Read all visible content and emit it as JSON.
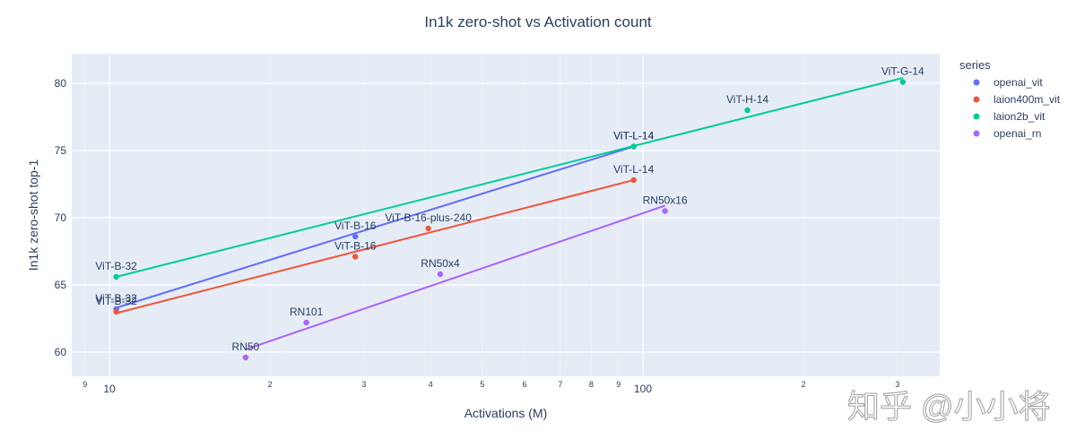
{
  "chart_data": {
    "type": "scatter",
    "title": "In1k zero-shot vs Activation count",
    "xlabel": "Activations (M)",
    "ylabel": "In1k zero-shot top-1",
    "x_scale": "log",
    "xlim": [
      8.5,
      360
    ],
    "ylim": [
      58.2,
      82.2
    ],
    "y_ticks": [
      60,
      65,
      70,
      75,
      80
    ],
    "x_ticks_major": [
      {
        "value": 10,
        "label": "10"
      },
      {
        "value": 100,
        "label": "100"
      }
    ],
    "x_ticks_minor": [
      {
        "value": 9,
        "label": "9"
      },
      {
        "value": 20,
        "label": "2"
      },
      {
        "value": 30,
        "label": "3"
      },
      {
        "value": 40,
        "label": "4"
      },
      {
        "value": 50,
        "label": "5"
      },
      {
        "value": 60,
        "label": "6"
      },
      {
        "value": 70,
        "label": "7"
      },
      {
        "value": 80,
        "label": "8"
      },
      {
        "value": 90,
        "label": "9"
      },
      {
        "value": 200,
        "label": "2"
      },
      {
        "value": 300,
        "label": "3"
      }
    ],
    "legend_title": "series",
    "legend_position": "right",
    "grid": true,
    "series": [
      {
        "name": "openai_vit",
        "color": "#636efa",
        "points": [
          {
            "x": 10.3,
            "y": 63.2,
            "label": "ViT-B-32"
          },
          {
            "x": 28.9,
            "y": 68.6,
            "label": "ViT-B-16"
          },
          {
            "x": 96.1,
            "y": 75.3,
            "label": "ViT-L-14"
          }
        ],
        "trend": [
          [
            10.3,
            63.3
          ],
          [
            96.1,
            75.3
          ]
        ]
      },
      {
        "name": "laion400m_vit",
        "color": "#ef553b",
        "points": [
          {
            "x": 10.3,
            "y": 63.0,
            "label": "ViT-B-32"
          },
          {
            "x": 28.9,
            "y": 67.1,
            "label": "ViT-B-16"
          },
          {
            "x": 39.6,
            "y": 69.2,
            "label": "ViT-B-16-plus-240"
          },
          {
            "x": 96.1,
            "y": 72.8,
            "label": "ViT-L-14"
          }
        ],
        "trend": [
          [
            10.3,
            62.9
          ],
          [
            96.1,
            72.8
          ]
        ]
      },
      {
        "name": "laion2b_vit",
        "color": "#00cc96",
        "points": [
          {
            "x": 10.3,
            "y": 65.6,
            "label": "ViT-B-32"
          },
          {
            "x": 96.1,
            "y": 75.3,
            "label": "ViT-L-14"
          },
          {
            "x": 157.0,
            "y": 78.0,
            "label": "ViT-H-14"
          },
          {
            "x": 307.0,
            "y": 80.1,
            "label": "ViT-G-14"
          }
        ],
        "trend": [
          [
            10.3,
            65.6
          ],
          [
            307.0,
            80.4
          ]
        ]
      },
      {
        "name": "openai_rn",
        "color": "#ab63fa",
        "points": [
          {
            "x": 18.0,
            "y": 59.6,
            "label": "RN50"
          },
          {
            "x": 23.4,
            "y": 62.2,
            "label": "RN101"
          },
          {
            "x": 41.7,
            "y": 65.8,
            "label": "RN50x4"
          },
          {
            "x": 110.0,
            "y": 70.5,
            "label": "RN50x16"
          }
        ],
        "trend": [
          [
            18.0,
            60.2
          ],
          [
            110.0,
            70.9
          ]
        ]
      }
    ]
  },
  "watermark": {
    "text": "知乎 @小小将"
  }
}
